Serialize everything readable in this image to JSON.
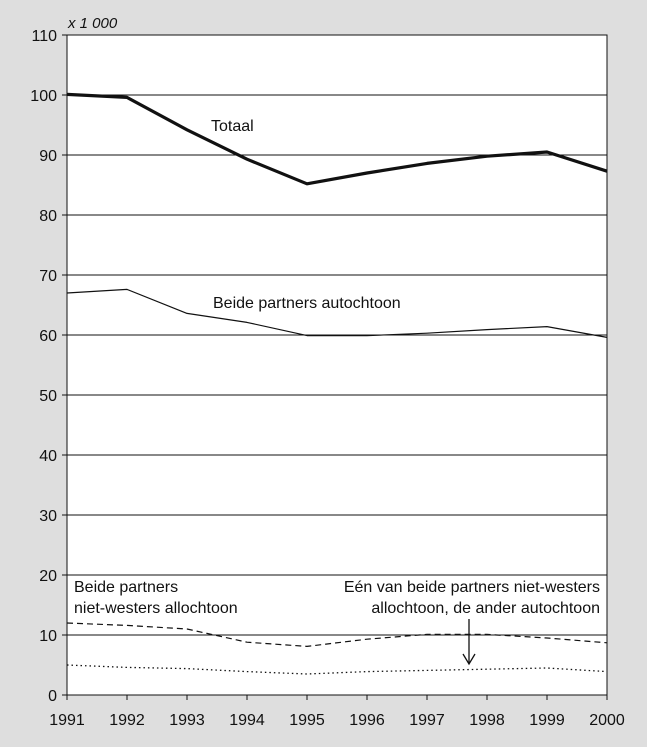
{
  "chart_data": {
    "type": "line",
    "unit_label": "x 1 000",
    "ylim": [
      0,
      110
    ],
    "yticks": [
      0,
      10,
      20,
      30,
      40,
      50,
      60,
      70,
      80,
      90,
      100,
      110
    ],
    "x": [
      1991,
      1992,
      1993,
      1994,
      1995,
      1996,
      1997,
      1998,
      1999,
      2000
    ],
    "grid": true,
    "series": [
      {
        "name": "Totaal",
        "style": "thick-solid",
        "color": "#111111",
        "values": [
          100.1,
          99.6,
          94.2,
          89.3,
          85.2,
          87.0,
          88.6,
          89.8,
          90.5,
          87.3
        ]
      },
      {
        "name": "Beide partners autochtoon",
        "style": "thin-solid",
        "color": "#111111",
        "values": [
          67.0,
          67.6,
          63.6,
          62.1,
          59.9,
          59.9,
          60.3,
          60.9,
          61.4,
          59.6
        ]
      },
      {
        "name": "Beide partners niet-westers allochtoon",
        "style": "dashed",
        "color": "#111111",
        "values": [
          12.0,
          11.6,
          11.0,
          8.8,
          8.1,
          9.3,
          10.1,
          10.1,
          9.5,
          8.7
        ]
      },
      {
        "name": "Eén van beide partners niet-westers allochtoon, de ander autochtoon",
        "style": "dotted",
        "color": "#111111",
        "values": [
          5.0,
          4.6,
          4.4,
          3.9,
          3.5,
          3.9,
          4.1,
          4.3,
          4.5,
          3.9
        ]
      }
    ],
    "annotations": {
      "totaal": "Totaal",
      "autochtoon": "Beide partners autochtoon",
      "allochtoon_line1": "Beide partners",
      "allochtoon_line2": "niet-westers allochtoon",
      "mixed_line1": "Eén van beide partners niet-westers",
      "mixed_line2": "allochtoon, de ander autochtoon"
    }
  }
}
